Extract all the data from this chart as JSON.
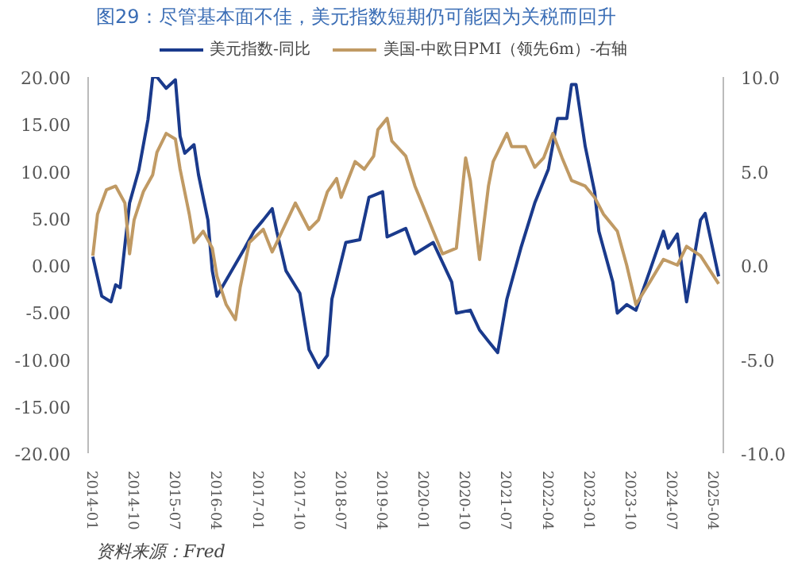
{
  "chart_data": {
    "type": "line",
    "title": "图29：尽管基本面不佳，美元指数短期仍可能因为关税而回升",
    "annotations": [
      "资料来源：Fred"
    ],
    "xlim": [
      "2013-12",
      "2025-06"
    ],
    "xticks": [
      "2014-01",
      "2014-10",
      "2015-07",
      "2016-04",
      "2017-01",
      "2017-10",
      "2018-07",
      "2019-04",
      "2020-01",
      "2020-10",
      "2021-07",
      "2022-04",
      "2023-01",
      "2023-10",
      "2024-07",
      "2025-04"
    ],
    "ylim": [
      -20,
      20
    ],
    "yticks": [
      {
        "value": -20,
        "label": "-20.00"
      },
      {
        "value": -15,
        "label": "-15.00"
      },
      {
        "value": -10,
        "label": "-10.00"
      },
      {
        "value": -5,
        "label": "-5.00"
      },
      {
        "value": 0,
        "label": "0.00"
      },
      {
        "value": 5,
        "label": "5.00"
      },
      {
        "value": 10,
        "label": "10.00"
      },
      {
        "value": 15,
        "label": "15.00"
      },
      {
        "value": 20,
        "label": "20.00"
      }
    ],
    "y2lim": [
      -10,
      10
    ],
    "y2ticks": [
      {
        "value": -10,
        "label": "-10.0"
      },
      {
        "value": -5,
        "label": "-5.0"
      },
      {
        "value": 0,
        "label": "0.0"
      },
      {
        "value": 5,
        "label": "5.0"
      },
      {
        "value": 10,
        "label": "10.0"
      }
    ],
    "grid": false,
    "legend": "top",
    "marker": "none",
    "line_style": "solid",
    "series": [
      {
        "name": "美元指数-同比",
        "color": "#1a3a8c",
        "x": [
          "2014-01",
          "2014-03",
          "2014-05",
          "2014-06",
          "2014-07",
          "2014-09",
          "2014-11",
          "2015-01",
          "2015-02",
          "2015-03",
          "2015-05",
          "2015-07",
          "2015-08",
          "2015-09",
          "2015-11",
          "2015-12",
          "2016-02",
          "2016-03",
          "2016-04",
          "2016-10",
          "2016-12",
          "2017-02",
          "2017-04",
          "2017-05",
          "2017-07",
          "2017-10",
          "2017-12",
          "2018-02",
          "2018-04",
          "2018-05",
          "2018-08",
          "2018-11",
          "2019-01",
          "2019-04",
          "2019-05",
          "2019-09",
          "2019-11",
          "2020-03",
          "2020-07",
          "2020-08",
          "2020-11",
          "2021-01",
          "2021-03",
          "2021-05",
          "2021-07",
          "2021-10",
          "2022-01",
          "2022-04",
          "2022-06",
          "2022-08",
          "2022-09",
          "2022-10",
          "2022-12",
          "2023-02",
          "2023-03",
          "2023-06",
          "2023-07",
          "2023-09",
          "2023-11",
          "2024-02",
          "2024-05",
          "2024-06",
          "2024-08",
          "2024-10",
          "2025-01",
          "2025-02",
          "2025-05"
        ],
        "values": [
          0.9,
          -3.3,
          -3.9,
          -2.1,
          -2.4,
          6.6,
          10.1,
          15.5,
          20,
          20,
          18.8,
          19.7,
          13.7,
          11.9,
          12.8,
          9.6,
          4.8,
          -0.6,
          -3.3,
          1.8,
          3.6,
          4.8,
          6.0,
          3.6,
          -0.6,
          -3.0,
          -9.0,
          -10.9,
          -9.6,
          -3.6,
          2.4,
          2.7,
          7.2,
          7.8,
          3.0,
          3.9,
          1.2,
          2.4,
          -1.8,
          -5.1,
          -4.8,
          -6.9,
          -8.1,
          -9.3,
          -3.6,
          1.8,
          6.6,
          10.2,
          15.6,
          15.6,
          19.2,
          19.2,
          12.6,
          7.8,
          3.6,
          -1.8,
          -5.1,
          -4.2,
          -4.8,
          -0.6,
          3.6,
          1.8,
          3.3,
          -3.9,
          4.8,
          5.5,
          -1.2
        ]
      },
      {
        "name": "美国-中欧日PMI（领先6m）-右轴",
        "color": "#c09a64",
        "axis": "y2",
        "x": [
          "2014-01",
          "2014-02",
          "2014-04",
          "2014-06",
          "2014-08",
          "2014-09",
          "2014-10",
          "2014-12",
          "2015-02",
          "2015-03",
          "2015-05",
          "2015-07",
          "2015-08",
          "2015-10",
          "2015-11",
          "2016-01",
          "2016-03",
          "2016-04",
          "2016-06",
          "2016-08",
          "2016-09",
          "2016-11",
          "2017-02",
          "2017-04",
          "2017-05",
          "2017-09",
          "2017-12",
          "2018-02",
          "2018-04",
          "2018-06",
          "2018-07",
          "2018-10",
          "2018-12",
          "2019-02",
          "2019-03",
          "2019-05",
          "2019-06",
          "2019-09",
          "2019-11",
          "2020-01",
          "2020-03",
          "2020-05",
          "2020-08",
          "2020-10",
          "2020-11",
          "2021-01",
          "2021-03",
          "2021-04",
          "2021-07",
          "2021-08",
          "2021-11",
          "2022-01",
          "2022-03",
          "2022-05",
          "2022-07",
          "2022-09",
          "2022-12",
          "2023-02",
          "2023-04",
          "2023-07",
          "2023-09",
          "2023-11",
          "2024-02",
          "2024-05",
          "2024-08",
          "2024-10",
          "2025-01",
          "2025-05"
        ],
        "values": [
          0.5,
          2.7,
          4.0,
          4.2,
          3.3,
          0.6,
          2.4,
          3.9,
          4.8,
          6.0,
          7.0,
          6.7,
          5.1,
          2.7,
          1.2,
          1.8,
          0.9,
          -0.6,
          -2.1,
          -2.9,
          -1.2,
          1.2,
          1.9,
          0.7,
          1.2,
          3.3,
          1.9,
          2.4,
          3.9,
          4.6,
          3.6,
          5.5,
          5.1,
          5.8,
          7.2,
          7.8,
          6.6,
          5.8,
          4.2,
          3.0,
          1.8,
          0.6,
          0.9,
          5.7,
          4.5,
          0.3,
          4.2,
          5.5,
          7.0,
          6.3,
          6.3,
          5.2,
          5.7,
          7.0,
          5.7,
          4.5,
          4.2,
          3.6,
          2.7,
          1.8,
          0.0,
          -2.1,
          -0.9,
          0.3,
          0.0,
          1.0,
          0.5,
          -1.0
        ]
      }
    ]
  }
}
